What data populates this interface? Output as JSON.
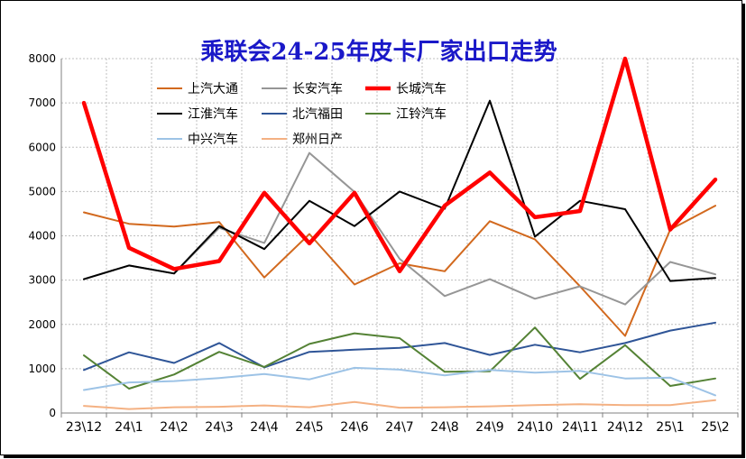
{
  "chart_data": {
    "type": "line",
    "title": "乘联会24-25年皮卡厂家出口走势",
    "categories": [
      "23\\12",
      "24\\1",
      "24\\2",
      "24\\3",
      "24\\4",
      "24\\5",
      "24\\6",
      "24\\7",
      "24\\8",
      "24\\9",
      "24\\10",
      "24\\11",
      "24\\12",
      "25\\1",
      "25\\2"
    ],
    "ylim": [
      0,
      8000
    ],
    "yticks": [
      0,
      1000,
      2000,
      3000,
      4000,
      5000,
      6000,
      7000,
      8000
    ],
    "grid": true,
    "legend_position": "top-left",
    "series": [
      {
        "name": "上汽大通",
        "color": "#d2691e",
        "bold": false,
        "values": [
          4530,
          4270,
          4210,
          4310,
          3060,
          4040,
          2900,
          3380,
          3200,
          4330,
          3920,
          2860,
          1740,
          4140,
          4680
        ]
      },
      {
        "name": "长安汽车",
        "color": "#969696",
        "bold": false,
        "values": [
          3020,
          3330,
          3150,
          4180,
          3840,
          5870,
          4990,
          3480,
          2640,
          3020,
          2580,
          2860,
          2450,
          3410,
          3130
        ]
      },
      {
        "name": "长城汽车",
        "color": "#ff0000",
        "bold": true,
        "values": [
          7000,
          3730,
          3250,
          3430,
          4970,
          3830,
          4970,
          3200,
          4680,
          5430,
          4420,
          4560,
          8000,
          4140,
          5270
        ]
      },
      {
        "name": "江淮汽车",
        "color": "#000000",
        "bold": false,
        "values": [
          3020,
          3330,
          3150,
          4220,
          3700,
          4790,
          4220,
          5000,
          4610,
          7050,
          3980,
          4790,
          4600,
          2980,
          3050
        ]
      },
      {
        "name": "北汽福田",
        "color": "#2f5597",
        "bold": false,
        "values": [
          970,
          1370,
          1130,
          1580,
          1030,
          1380,
          1430,
          1470,
          1580,
          1310,
          1540,
          1370,
          1580,
          1860,
          2040
        ]
      },
      {
        "name": "江铃汽车",
        "color": "#548235",
        "bold": false,
        "values": [
          1300,
          550,
          870,
          1380,
          1040,
          1560,
          1800,
          1690,
          930,
          940,
          1930,
          770,
          1530,
          610,
          780
        ]
      },
      {
        "name": "中兴汽车",
        "color": "#9dc3e6",
        "bold": false,
        "values": [
          520,
          690,
          720,
          790,
          880,
          760,
          1020,
          980,
          850,
          970,
          910,
          950,
          780,
          800,
          400
        ]
      },
      {
        "name": "郑州日产",
        "color": "#f4b183",
        "bold": false,
        "values": [
          160,
          90,
          130,
          140,
          170,
          130,
          250,
          120,
          130,
          150,
          180,
          200,
          180,
          180,
          290
        ]
      }
    ]
  }
}
